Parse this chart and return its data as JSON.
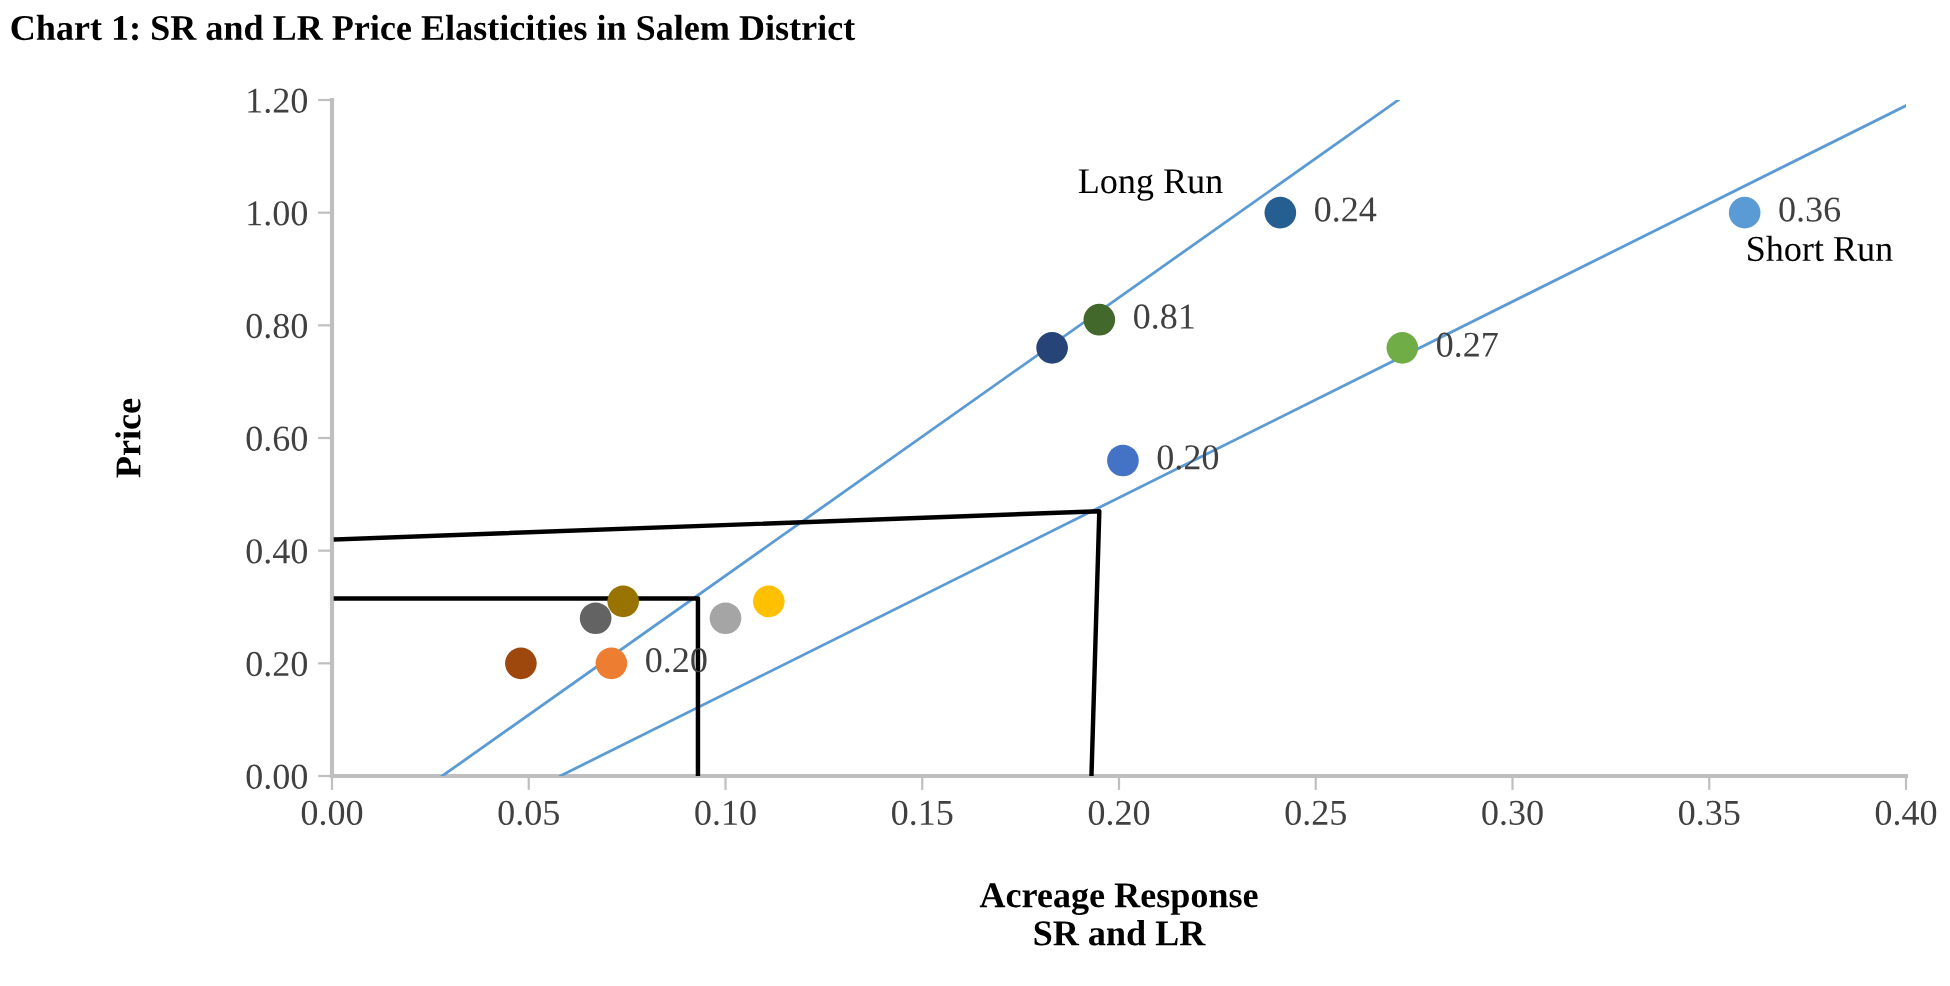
{
  "chart_data": {
    "type": "scatter",
    "title": "Chart 1: SR and LR Price Elasticities in Salem District",
    "xlabel": "Acreage Response\nSR and LR",
    "ylabel": "Price",
    "xlim": [
      0,
      0.4
    ],
    "ylim": [
      0,
      1.2
    ],
    "xticks": [
      {
        "value": 0,
        "label": "0.00"
      },
      {
        "value": 0.05,
        "label": "0.05"
      },
      {
        "value": 0.1,
        "label": "0.10"
      },
      {
        "value": 0.15,
        "label": "0.15"
      },
      {
        "value": 0.2,
        "label": "0.20"
      },
      {
        "value": 0.25,
        "label": "0.25"
      },
      {
        "value": 0.3,
        "label": "0.30"
      },
      {
        "value": 0.35,
        "label": "0.35"
      },
      {
        "value": 0.4,
        "label": "0.40"
      }
    ],
    "yticks": [
      {
        "value": 0,
        "label": "0.00"
      },
      {
        "value": 0.2,
        "label": "0.20"
      },
      {
        "value": 0.4,
        "label": "0.40"
      },
      {
        "value": 0.6,
        "label": "0.60"
      },
      {
        "value": 0.8,
        "label": "0.80"
      },
      {
        "value": 1.0,
        "label": "1.00"
      },
      {
        "value": 1.2,
        "label": "1.20"
      }
    ],
    "grid": false,
    "legend": false,
    "marker": "circle",
    "x": [
      0.048,
      0.071,
      0.067,
      0.074,
      0.1,
      0.111,
      0.183,
      0.195,
      0.201,
      0.241,
      0.272,
      0.359
    ],
    "values": [
      0.2,
      0.2,
      0.28,
      0.31,
      0.28,
      0.31,
      0.76,
      0.81,
      0.56,
      1.0,
      0.76,
      1.0
    ],
    "colors": [
      "#9e480e",
      "#ed7d31",
      "#636363",
      "#997300",
      "#a5a5a5",
      "#ffc000",
      "#264478",
      "#43682b",
      "#4472c4",
      "#255e91",
      "#70ad47",
      "#5b9bd5"
    ],
    "series": [
      {
        "type": "line",
        "name": "Long Run",
        "marker": "none",
        "color": "#5b9bd5",
        "x": [
          0.028,
          0.271
        ],
        "values": [
          0,
          1.2
        ]
      },
      {
        "type": "line",
        "name": "Short Run",
        "marker": "none",
        "color": "#5b9bd5",
        "x": [
          0.058,
          0.4
        ],
        "values": [
          0,
          1.19
        ]
      },
      {
        "type": "line",
        "marker": "none",
        "color": "#000000",
        "x": [
          0.001,
          0.195,
          0.193
        ],
        "values": [
          0.42,
          0.47,
          0
        ]
      },
      {
        "type": "line",
        "marker": "none",
        "color": "#000000",
        "x": [
          0.001,
          0.093,
          0.093
        ],
        "values": [
          0.315,
          0.315,
          0
        ]
      }
    ],
    "annotations": [
      {
        "text": "0.20",
        "x": 0.071,
        "y": 0.2
      },
      {
        "text": "0.81",
        "x": 0.195,
        "y": 0.81
      },
      {
        "text": "0.20",
        "x": 0.201,
        "y": 0.56
      },
      {
        "text": "0.24",
        "x": 0.241,
        "y": 1.0
      },
      {
        "text": "0.27",
        "x": 0.272,
        "y": 0.76
      },
      {
        "text": "0.36",
        "x": 0.359,
        "y": 1.0
      }
    ]
  }
}
